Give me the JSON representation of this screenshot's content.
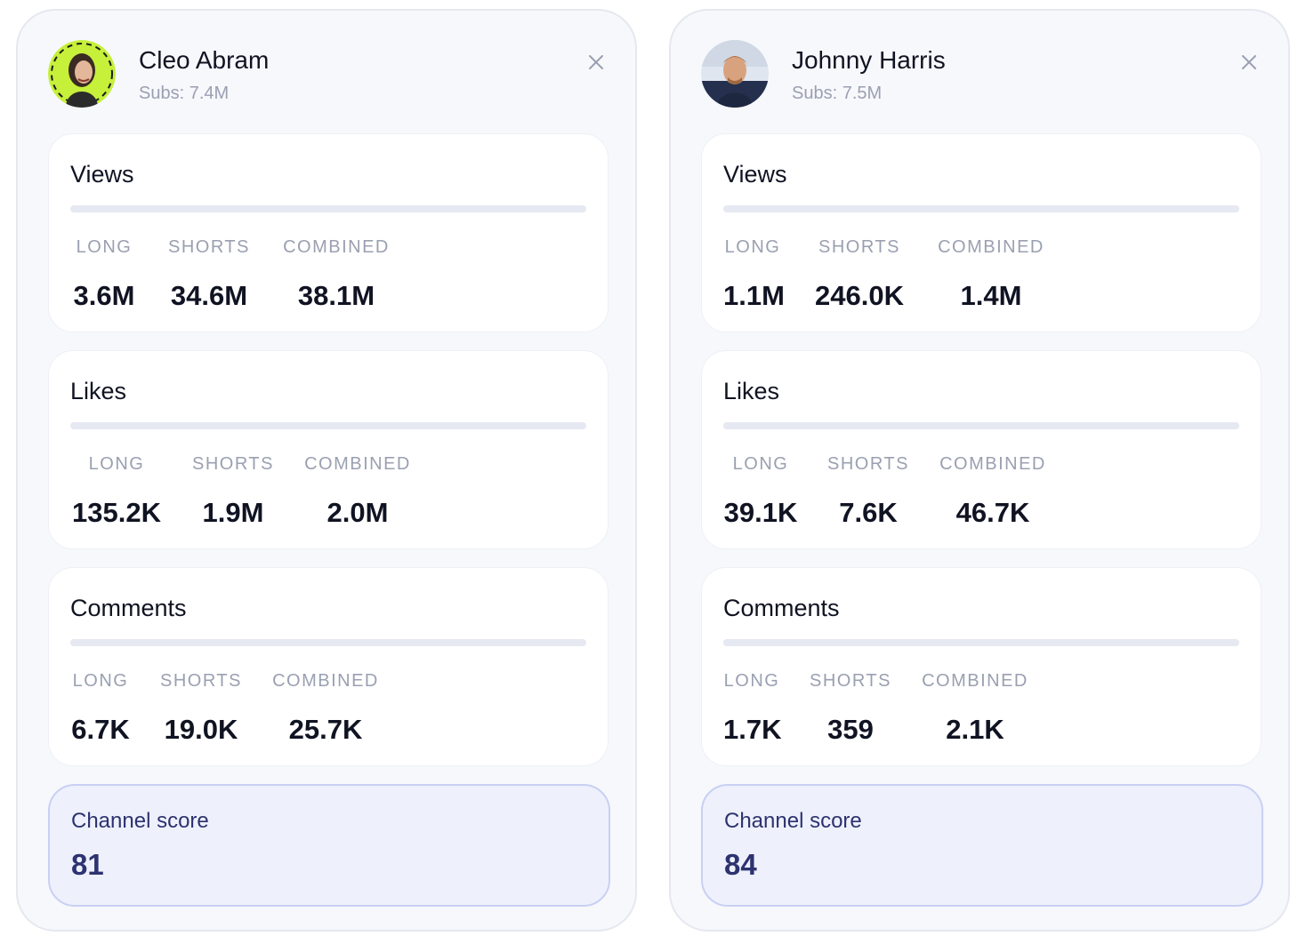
{
  "colors": {
    "card_background": "#f7f8fc",
    "metric_background": "#ffffff",
    "score_background": "#eef1fc",
    "score_border": "#c9d0f3",
    "score_text": "#2d3270",
    "muted_text": "#9aa0b1",
    "primary_text": "#101322"
  },
  "channels": [
    {
      "name": "Cleo Abram",
      "subs": "Subs: 7.4M",
      "avatar_icon": "avatar-photo",
      "close_icon": "close-icon",
      "metrics": [
        {
          "title": "Views",
          "long_label": "LONG",
          "shorts_label": "SHORTS",
          "combined_label": "COMBINED",
          "long": "3.6M",
          "shorts": "34.6M",
          "combined": "38.1M"
        },
        {
          "title": "Likes",
          "long_label": "LONG",
          "shorts_label": "SHORTS",
          "combined_label": "COMBINED",
          "long": "135.2K",
          "shorts": "1.9M",
          "combined": "2.0M"
        },
        {
          "title": "Comments",
          "long_label": "LONG",
          "shorts_label": "SHORTS",
          "combined_label": "COMBINED",
          "long": "6.7K",
          "shorts": "19.0K",
          "combined": "25.7K"
        }
      ],
      "score_label": "Channel score",
      "score": "81"
    },
    {
      "name": "Johnny Harris",
      "subs": "Subs: 7.5M",
      "avatar_icon": "avatar-photo",
      "close_icon": "close-icon",
      "metrics": [
        {
          "title": "Views",
          "long_label": "LONG",
          "shorts_label": "SHORTS",
          "combined_label": "COMBINED",
          "long": "1.1M",
          "shorts": "246.0K",
          "combined": "1.4M"
        },
        {
          "title": "Likes",
          "long_label": "LONG",
          "shorts_label": "SHORTS",
          "combined_label": "COMBINED",
          "long": "39.1K",
          "shorts": "7.6K",
          "combined": "46.7K"
        },
        {
          "title": "Comments",
          "long_label": "LONG",
          "shorts_label": "SHORTS",
          "combined_label": "COMBINED",
          "long": "1.7K",
          "shorts": "359",
          "combined": "2.1K"
        }
      ],
      "score_label": "Channel score",
      "score": "84"
    }
  ]
}
